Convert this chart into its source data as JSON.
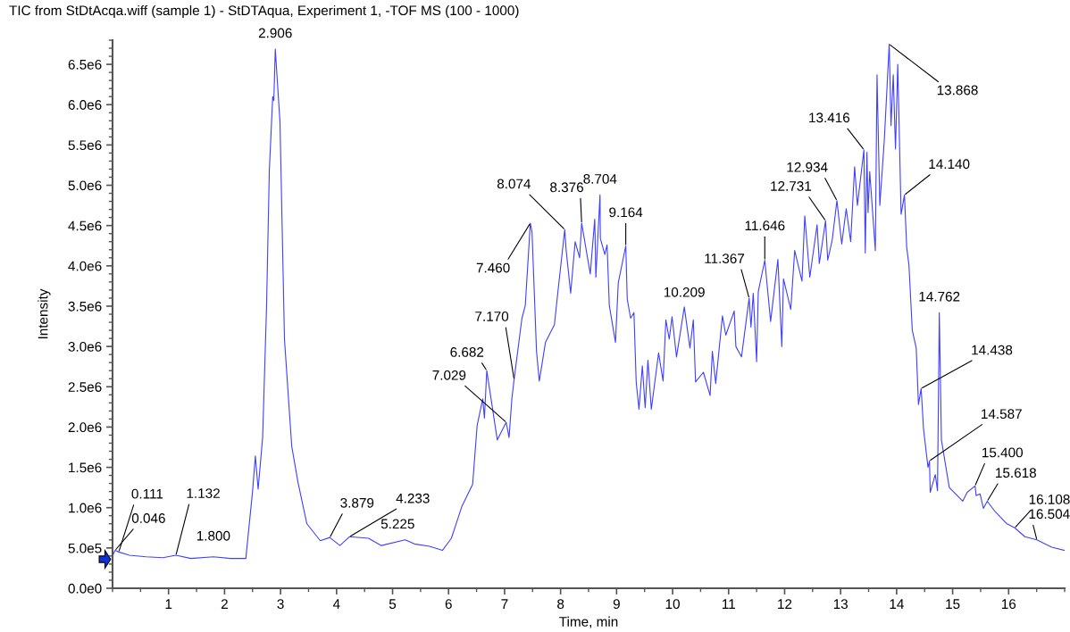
{
  "chart_data": {
    "type": "line",
    "title": "TIC from StDtAcqa.wiff (sample 1) - StDTAqua, Experiment 1, -TOF MS (100 - 1000)",
    "xlabel": "Time, min",
    "ylabel": "Intensity",
    "xlim": [
      0,
      17
    ],
    "xticks": [
      1,
      2,
      3,
      4,
      5,
      6,
      7,
      8,
      9,
      10,
      11,
      12,
      13,
      14,
      15,
      16
    ],
    "ylim": [
      0,
      6800000
    ],
    "yticks": [
      {
        "value": 0,
        "label": "0.0e0"
      },
      {
        "value": 500000,
        "label": "5.0e5"
      },
      {
        "value": 1000000,
        "label": "1.0e6"
      },
      {
        "value": 1500000,
        "label": "1.5e6"
      },
      {
        "value": 2000000,
        "label": "2.0e6"
      },
      {
        "value": 2500000,
        "label": "2.5e6"
      },
      {
        "value": 3000000,
        "label": "3.0e6"
      },
      {
        "value": 3500000,
        "label": "3.5e6"
      },
      {
        "value": 4000000,
        "label": "4.0e6"
      },
      {
        "value": 4500000,
        "label": "4.5e6"
      },
      {
        "value": 5000000,
        "label": "5.0e6"
      },
      {
        "value": 5500000,
        "label": "5.5e6"
      },
      {
        "value": 6000000,
        "label": "6.0e6"
      },
      {
        "value": 6500000,
        "label": "6.5e6"
      }
    ],
    "grid": false,
    "marker": "none",
    "line_style": "solid",
    "series": [
      {
        "color": "#4040ff",
        "x": [
          0,
          0.046,
          0.111,
          0.3,
          0.6,
          0.9,
          1.132,
          1.4,
          1.8,
          2.1,
          2.38,
          2.5,
          2.55,
          2.6,
          2.68,
          2.75,
          2.8,
          2.86,
          2.88,
          2.906,
          2.99,
          3.07,
          3.2,
          3.31,
          3.47,
          3.71,
          3.879,
          4.06,
          4.233,
          4.57,
          4.8,
          5.225,
          5.39,
          5.66,
          5.89,
          6.05,
          6.24,
          6.43,
          6.51,
          6.61,
          6.64,
          6.682,
          6.87,
          7.029,
          7.08,
          7.13,
          7.17,
          7.31,
          7.37,
          7.46,
          7.49,
          7.57,
          7.62,
          7.73,
          7.89,
          7.94,
          8.074,
          8.1,
          8.18,
          8.26,
          8.34,
          8.376,
          8.53,
          8.61,
          8.63,
          8.704,
          8.71,
          8.79,
          8.83,
          8.87,
          8.98,
          9.03,
          9.164,
          9.19,
          9.25,
          9.31,
          9.35,
          9.4,
          9.46,
          9.51,
          9.56,
          9.62,
          9.75,
          9.83,
          9.88,
          9.94,
          9.99,
          10.07,
          10.209,
          10.31,
          10.37,
          10.41,
          10.55,
          10.67,
          10.71,
          10.77,
          10.89,
          10.95,
          11.1,
          11.13,
          11.23,
          11.367,
          11.4,
          11.44,
          11.5,
          11.53,
          11.646,
          11.75,
          11.88,
          11.95,
          11.98,
          12.11,
          12.18,
          12.31,
          12.36,
          12.45,
          12.58,
          12.62,
          12.731,
          12.77,
          12.85,
          12.934,
          13.02,
          13.1,
          13.18,
          13.25,
          13.3,
          13.416,
          13.44,
          13.47,
          13.49,
          13.52,
          13.62,
          13.65,
          13.7,
          13.78,
          13.868,
          13.9,
          13.94,
          13.98,
          14.02,
          14.08,
          14.14,
          14.18,
          14.22,
          14.28,
          14.35,
          14.39,
          14.438,
          14.48,
          14.56,
          14.587,
          14.6,
          14.69,
          14.73,
          14.762,
          14.8,
          14.94,
          15.18,
          15.26,
          15.4,
          15.42,
          15.49,
          15.55,
          15.618,
          15.76,
          15.97,
          16.108,
          16.29,
          16.504,
          16.77,
          17.0
        ],
        "values": [
          400000,
          470000,
          450000,
          410000,
          390000,
          380000,
          410000,
          370000,
          390000,
          370000,
          370000,
          1200000,
          1640000,
          1230000,
          1870000,
          3500000,
          5190000,
          6100000,
          6050000,
          6690000,
          5780000,
          3090000,
          1760000,
          1320000,
          800000,
          590000,
          630000,
          530000,
          640000,
          620000,
          530000,
          600000,
          550000,
          520000,
          470000,
          620000,
          1020000,
          1290000,
          2020000,
          2350000,
          2110000,
          2700000,
          1840000,
          2060000,
          1870000,
          2350000,
          2590000,
          3350000,
          3510000,
          4530000,
          4420000,
          2940000,
          2570000,
          3050000,
          3270000,
          3600000,
          4450000,
          4190000,
          3660000,
          4300000,
          4100000,
          4530000,
          3900000,
          4580000,
          3860000,
          4880000,
          4340000,
          4140000,
          4260000,
          3510000,
          3050000,
          3790000,
          4250000,
          3590000,
          3350000,
          3420000,
          2560000,
          2220000,
          2760000,
          2240000,
          2830000,
          2220000,
          2920000,
          2570000,
          3330000,
          3090000,
          3370000,
          2870000,
          3490000,
          2980000,
          3330000,
          2560000,
          2680000,
          2390000,
          2940000,
          2540000,
          3380000,
          3140000,
          3440000,
          3000000,
          2870000,
          3600000,
          3240000,
          3660000,
          2810000,
          3680000,
          4070000,
          3310000,
          4080000,
          3000000,
          3840000,
          3460000,
          4190000,
          3810000,
          4620000,
          3860000,
          4510000,
          4030000,
          4560000,
          4070000,
          4320000,
          4810000,
          4270000,
          4710000,
          4300000,
          5230000,
          4750000,
          5440000,
          4160000,
          5410000,
          4660000,
          5170000,
          4190000,
          6370000,
          4750000,
          5560000,
          6750000,
          5740000,
          6370000,
          5450000,
          6500000,
          4640000,
          4880000,
          4230000,
          4010000,
          3200000,
          2980000,
          2280000,
          2480000,
          1980000,
          1500000,
          1580000,
          1190000,
          1410000,
          1210000,
          3420000,
          1840000,
          1250000,
          1080000,
          1190000,
          1270000,
          1150000,
          1170000,
          990000,
          1080000,
          950000,
          800000,
          750000,
          640000,
          600000,
          510000,
          470000
        ]
      }
    ],
    "annotations": [
      {
        "text": "0.111",
        "x": 0.111,
        "y": 450000
      },
      {
        "text": "0.046",
        "x": 0.046,
        "y": 470000
      },
      {
        "text": "1.132",
        "x": 1.132,
        "y": 410000
      },
      {
        "text": "1.800",
        "x": 1.8,
        "y": 390000
      },
      {
        "text": "2.906",
        "x": 2.906,
        "y": 6690000
      },
      {
        "text": "3.879",
        "x": 3.879,
        "y": 630000
      },
      {
        "text": "4.233",
        "x": 4.233,
        "y": 640000
      },
      {
        "text": "5.225",
        "x": 5.225,
        "y": 600000
      },
      {
        "text": "7.029",
        "x": 7.029,
        "y": 2060000
      },
      {
        "text": "6.682",
        "x": 6.682,
        "y": 2700000
      },
      {
        "text": "7.170",
        "x": 7.17,
        "y": 2590000
      },
      {
        "text": "7.460",
        "x": 7.46,
        "y": 4530000
      },
      {
        "text": "8.074",
        "x": 8.074,
        "y": 4450000
      },
      {
        "text": "8.376",
        "x": 8.376,
        "y": 4530000
      },
      {
        "text": "8.704",
        "x": 8.704,
        "y": 4880000
      },
      {
        "text": "9.164",
        "x": 9.164,
        "y": 4250000
      },
      {
        "text": "10.209",
        "x": 10.209,
        "y": 3490000
      },
      {
        "text": "11.367",
        "x": 11.367,
        "y": 3600000
      },
      {
        "text": "11.646",
        "x": 11.646,
        "y": 4070000
      },
      {
        "text": "12.731",
        "x": 12.731,
        "y": 4560000
      },
      {
        "text": "12.934",
        "x": 12.934,
        "y": 4810000
      },
      {
        "text": "13.416",
        "x": 13.416,
        "y": 5440000
      },
      {
        "text": "13.868",
        "x": 13.868,
        "y": 6750000
      },
      {
        "text": "14.140",
        "x": 14.14,
        "y": 4880000
      },
      {
        "text": "14.762",
        "x": 14.762,
        "y": 3420000
      },
      {
        "text": "14.438",
        "x": 14.438,
        "y": 2480000
      },
      {
        "text": "14.587",
        "x": 14.587,
        "y": 1580000
      },
      {
        "text": "15.400",
        "x": 15.4,
        "y": 1270000
      },
      {
        "text": "15.618",
        "x": 15.618,
        "y": 1080000
      },
      {
        "text": "16.108",
        "x": 16.108,
        "y": 750000
      },
      {
        "text": "16.504",
        "x": 16.504,
        "y": 600000
      }
    ]
  }
}
